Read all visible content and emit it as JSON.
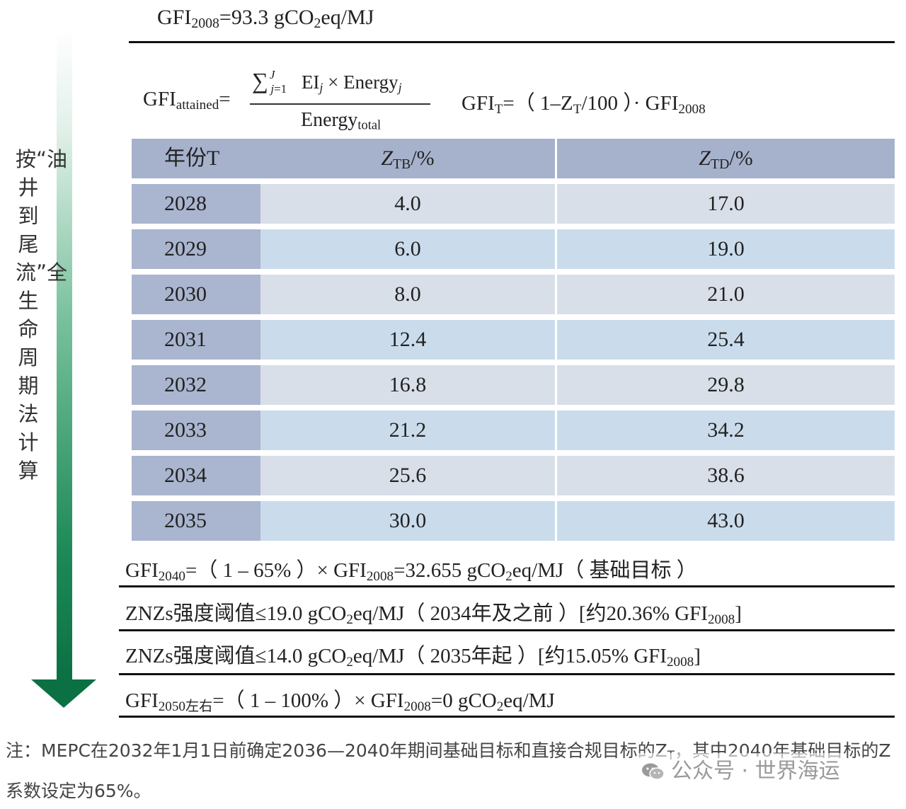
{
  "top": {
    "prefix": "GFI",
    "sub": "2008",
    "suffix": "=93.3 gCO",
    "sub2": "2",
    "tail": "eq/MJ"
  },
  "formula": {
    "lhs_main": "GFI",
    "lhs_sub": "attained",
    "lhs_eq": "=",
    "numerator": "∑ j=1..J  EIj × Energyj",
    "den_main": "Energy",
    "den_sub": "total",
    "rhs_main": "GFI",
    "rhs_sub": "T",
    "rhs_mid": "=（ 1–Z",
    "rhs_sub2": "T",
    "rhs_mid2": "/100 ）· GFI",
    "rhs_sub3": "2008"
  },
  "table": {
    "headers": {
      "year": "年份T",
      "tb_main": "Z",
      "tb_sub": "TB",
      "tb_unit": "/%",
      "td_main": "Z",
      "td_sub": "TD",
      "td_unit": "/%"
    },
    "rows": [
      {
        "year": "2028",
        "tb": "4.0",
        "td": "17.0"
      },
      {
        "year": "2029",
        "tb": "6.0",
        "td": "19.0"
      },
      {
        "year": "2030",
        "tb": "8.0",
        "td": "21.0"
      },
      {
        "year": "2031",
        "tb": "12.4",
        "td": "25.4"
      },
      {
        "year": "2032",
        "tb": "16.8",
        "td": "29.8"
      },
      {
        "year": "2033",
        "tb": "21.2",
        "td": "34.2"
      },
      {
        "year": "2034",
        "tb": "25.6",
        "td": "38.6"
      },
      {
        "year": "2035",
        "tb": "30.0",
        "td": "43.0"
      }
    ]
  },
  "lines": {
    "l1_a": "GFI",
    "l1_sub": "2040",
    "l1_b": "=（ 1 – 65% ）× GFI",
    "l1_sub2": "2008",
    "l1_c": "=32.655 gCO",
    "l1_sub3": "2",
    "l1_d": "eq/MJ（ 基础目标 ）",
    "l2_a": "ZNZs强度阈值≤19.0 gCO",
    "l2_sub": "2",
    "l2_b": "eq/MJ（ 2034年及之前 ）[约20.36% GFI",
    "l2_sub2": "2008",
    "l2_c": "]",
    "l3_a": "ZNZs强度阈值≤14.0 gCO",
    "l3_sub": "2",
    "l3_b": "eq/MJ（ 2035年起 ）[约15.05% GFI",
    "l3_sub2": "2008",
    "l3_c": "]",
    "l4_a": "GFI",
    "l4_sub": "2050左右",
    "l4_b": "=（ 1 – 100% ）× GFI",
    "l4_sub2": "2008",
    "l4_c": "=0 gCO",
    "l4_sub3": "2",
    "l4_d": "eq/MJ"
  },
  "vertical_label": "按“油井到尾流”全生命周期法计算",
  "note": {
    "text1": "注：MEPC在2032年1月1日前确定2036—2040年期间基础目标和直接合规目标的Z",
    "sub": "T",
    "text2": "，其中2040年基础目标的Z系数设定为65%。"
  },
  "watermark": "公众号 · 世界海运",
  "colors": {
    "header_bg": "#a6b2cc",
    "year_cell_bg": "#aab5cf",
    "row_odd_bg": "#d9dfe9",
    "row_even_bg": "#cadcec",
    "arrow_green": "#0b7043"
  },
  "icons": [
    "wechat-icon",
    "down-arrow-icon"
  ]
}
